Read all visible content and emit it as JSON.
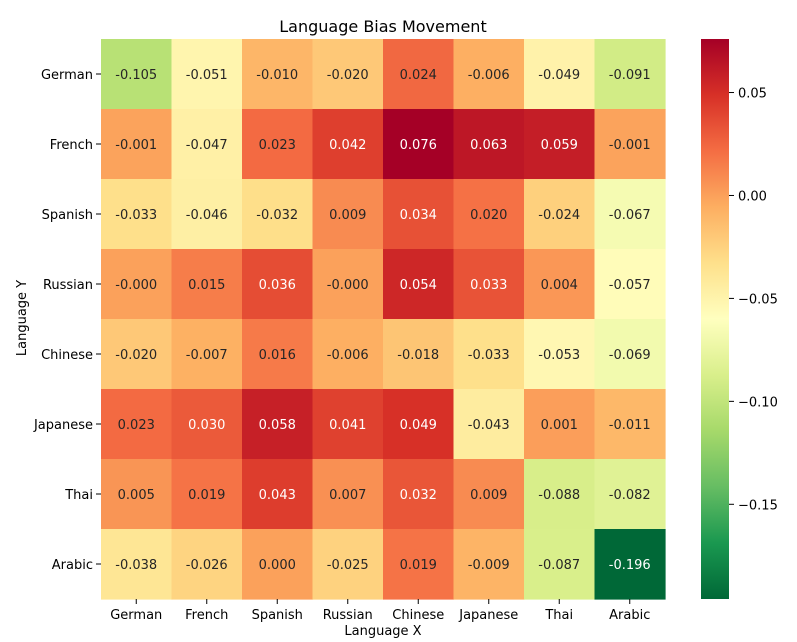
{
  "chart_data": {
    "type": "heatmap",
    "title": "Language Bias Movement",
    "xlabel": "Language X",
    "ylabel": "Language Y",
    "x_categories": [
      "German",
      "French",
      "Spanish",
      "Russian",
      "Chinese",
      "Japanese",
      "Thai",
      "Arabic"
    ],
    "y_categories": [
      "German",
      "French",
      "Spanish",
      "Russian",
      "Chinese",
      "Japanese",
      "Thai",
      "Arabic"
    ],
    "values": [
      [
        -0.105,
        -0.051,
        -0.01,
        -0.02,
        0.024,
        -0.006,
        -0.049,
        -0.091
      ],
      [
        -0.001,
        -0.047,
        0.023,
        0.042,
        0.076,
        0.063,
        0.059,
        -0.001
      ],
      [
        -0.033,
        -0.046,
        -0.032,
        0.009,
        0.034,
        0.02,
        -0.024,
        -0.067
      ],
      [
        -0.0,
        0.015,
        0.036,
        -0.0,
        0.054,
        0.033,
        0.004,
        -0.057
      ],
      [
        -0.02,
        -0.007,
        0.016,
        -0.006,
        -0.018,
        -0.033,
        -0.053,
        -0.069
      ],
      [
        0.023,
        0.03,
        0.058,
        0.041,
        0.049,
        -0.043,
        0.001,
        -0.011
      ],
      [
        0.005,
        0.019,
        0.043,
        0.007,
        0.032,
        0.009,
        -0.088,
        -0.082
      ],
      [
        -0.038,
        -0.026,
        0.0,
        -0.025,
        0.019,
        -0.009,
        -0.087,
        -0.196
      ]
    ],
    "cell_labels": [
      [
        "-0.105",
        "-0.051",
        "-0.010",
        "-0.020",
        "0.024",
        "-0.006",
        "-0.049",
        "-0.091"
      ],
      [
        "-0.001",
        "-0.047",
        "0.023",
        "0.042",
        "0.076",
        "0.063",
        "0.059",
        "-0.001"
      ],
      [
        "-0.033",
        "-0.046",
        "-0.032",
        "0.009",
        "0.034",
        "0.020",
        "-0.024",
        "-0.067"
      ],
      [
        "-0.000",
        "0.015",
        "0.036",
        "-0.000",
        "0.054",
        "0.033",
        "0.004",
        "-0.057"
      ],
      [
        "-0.020",
        "-0.007",
        "0.016",
        "-0.006",
        "-0.018",
        "-0.033",
        "-0.053",
        "-0.069"
      ],
      [
        "0.023",
        "0.030",
        "0.058",
        "0.041",
        "0.049",
        "-0.043",
        "0.001",
        "-0.011"
      ],
      [
        "0.005",
        "0.019",
        "0.043",
        "0.007",
        "0.032",
        "0.009",
        "-0.088",
        "-0.082"
      ],
      [
        "-0.038",
        "-0.026",
        "0.000",
        "-0.025",
        "0.019",
        "-0.009",
        "-0.087",
        "-0.196"
      ]
    ],
    "colormap": "RdYlGn_r",
    "vmin": -0.196,
    "vmax": 0.076,
    "colorbar_ticks": [
      0.05,
      0.0,
      -0.05,
      -0.1,
      -0.15
    ],
    "colorbar_tick_labels": [
      "0.05",
      "0.00",
      "−0.05",
      "−0.10",
      "−0.15"
    ],
    "grid": false,
    "legend": "colorbar-right"
  }
}
